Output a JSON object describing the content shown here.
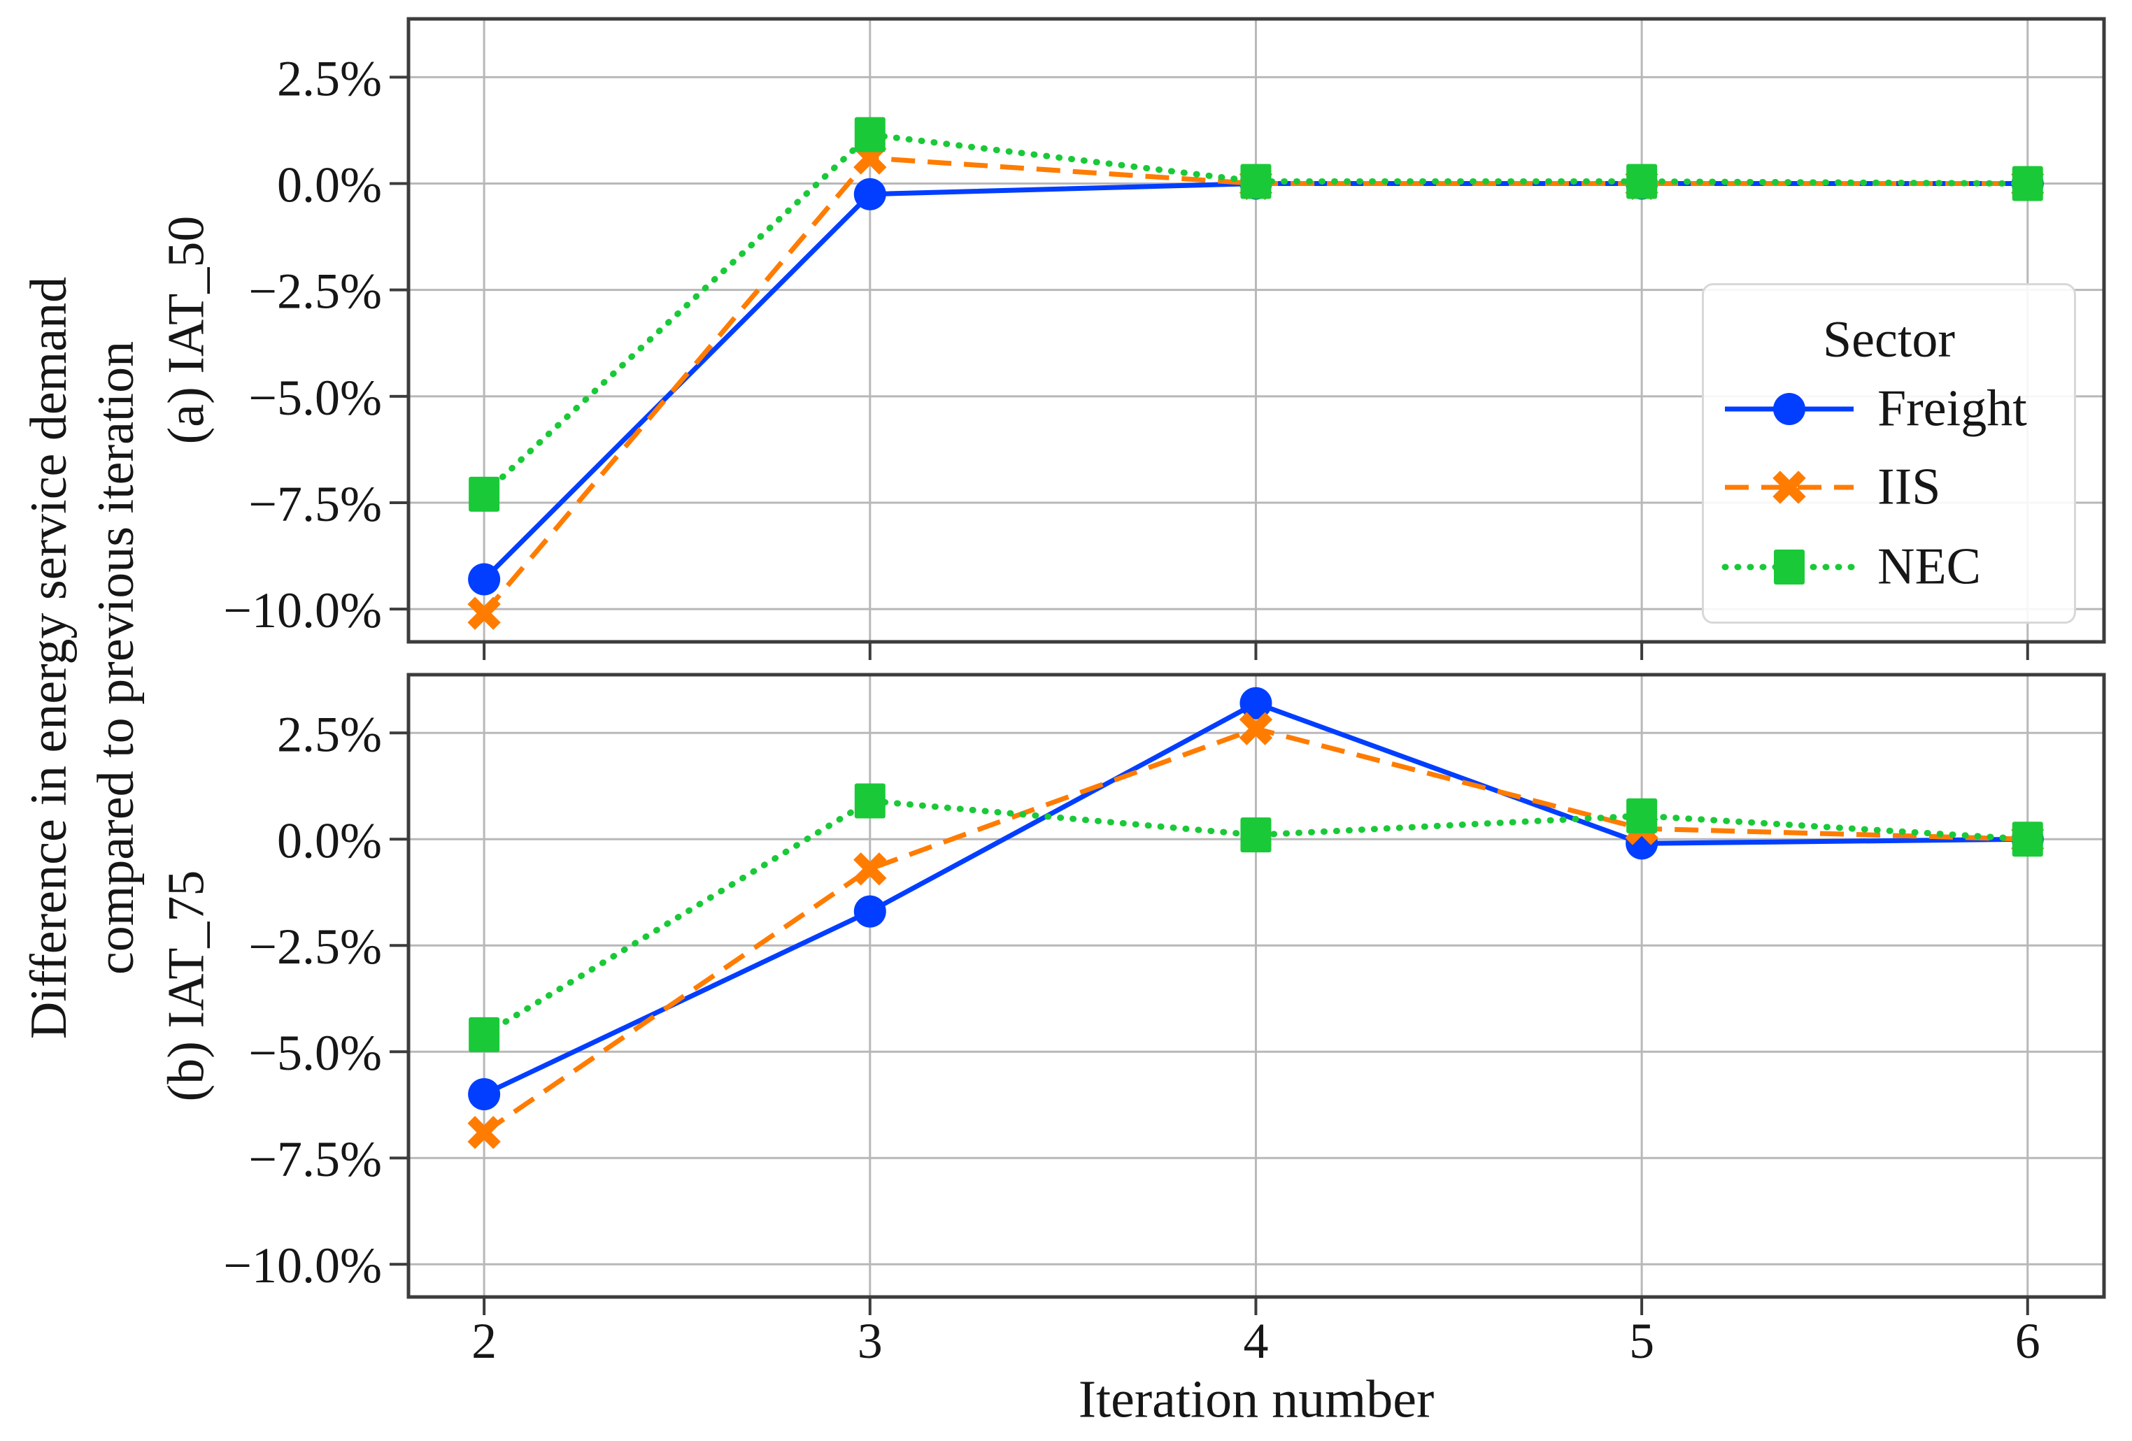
{
  "figure": {
    "xlabel": "Iteration number",
    "ylabel_line1": "Difference in energy service demand",
    "ylabel_line2": "compared to previous iteration",
    "background": "#ffffff",
    "text_color": "#161616"
  },
  "legend": {
    "title": "Sector",
    "items": [
      {
        "label": "Freight",
        "series": "Freight"
      },
      {
        "label": "IIS",
        "series": "IIS"
      },
      {
        "label": "NEC",
        "series": "NEC"
      }
    ]
  },
  "styles": {
    "Freight": {
      "color": "#023eff",
      "marker": "circle",
      "line": "solid"
    },
    "IIS": {
      "color": "#ff7c00",
      "marker": "x",
      "line": "dashed"
    },
    "NEC": {
      "color": "#1ac938",
      "marker": "square",
      "line": "dotted"
    }
  },
  "colors": {
    "grid": "#b8b8b8",
    "frame": "#3c3c3c",
    "freight_blue": "#023eff",
    "iis_orange": "#ff7c00",
    "nec_green": "#1ac938"
  },
  "axes": {
    "xtick_labels": [
      "2",
      "3",
      "4",
      "5",
      "6"
    ],
    "xtick_values": [
      2,
      3,
      4,
      5,
      6
    ],
    "ytick_labels": [
      "2.5%",
      "0.0%",
      "−2.5%",
      "−5.0%",
      "−7.5%",
      "−10.0%"
    ],
    "ytick_values": [
      2.5,
      0.0,
      -2.5,
      -5.0,
      -7.5,
      -10.0
    ],
    "xlim": [
      1.804,
      6.198
    ],
    "grid": true
  },
  "chart_data": [
    {
      "type": "line",
      "panel_label": "(a) IAT_50",
      "x": [
        2,
        3,
        4,
        5,
        6
      ],
      "series": [
        {
          "name": "Freight",
          "values": [
            -9.3,
            -0.25,
            0.0,
            0.0,
            0.0
          ]
        },
        {
          "name": "IIS",
          "values": [
            -10.1,
            0.6,
            0.0,
            0.0,
            0.0
          ]
        },
        {
          "name": "NEC",
          "values": [
            -7.3,
            1.15,
            0.05,
            0.05,
            0.0
          ]
        }
      ],
      "ylim": [
        -10.77,
        3.87
      ],
      "legend_position": "right"
    },
    {
      "type": "line",
      "panel_label": "(b) IAT_75",
      "x": [
        2,
        3,
        4,
        5,
        6
      ],
      "series": [
        {
          "name": "Freight",
          "values": [
            -6.0,
            -1.7,
            3.2,
            -0.1,
            0.0
          ]
        },
        {
          "name": "IIS",
          "values": [
            -6.9,
            -0.7,
            2.6,
            0.25,
            0.0
          ]
        },
        {
          "name": "NEC",
          "values": [
            -4.6,
            0.9,
            0.1,
            0.55,
            0.0
          ]
        }
      ],
      "ylim": [
        -10.77,
        3.87
      ],
      "legend_position": "none"
    }
  ]
}
